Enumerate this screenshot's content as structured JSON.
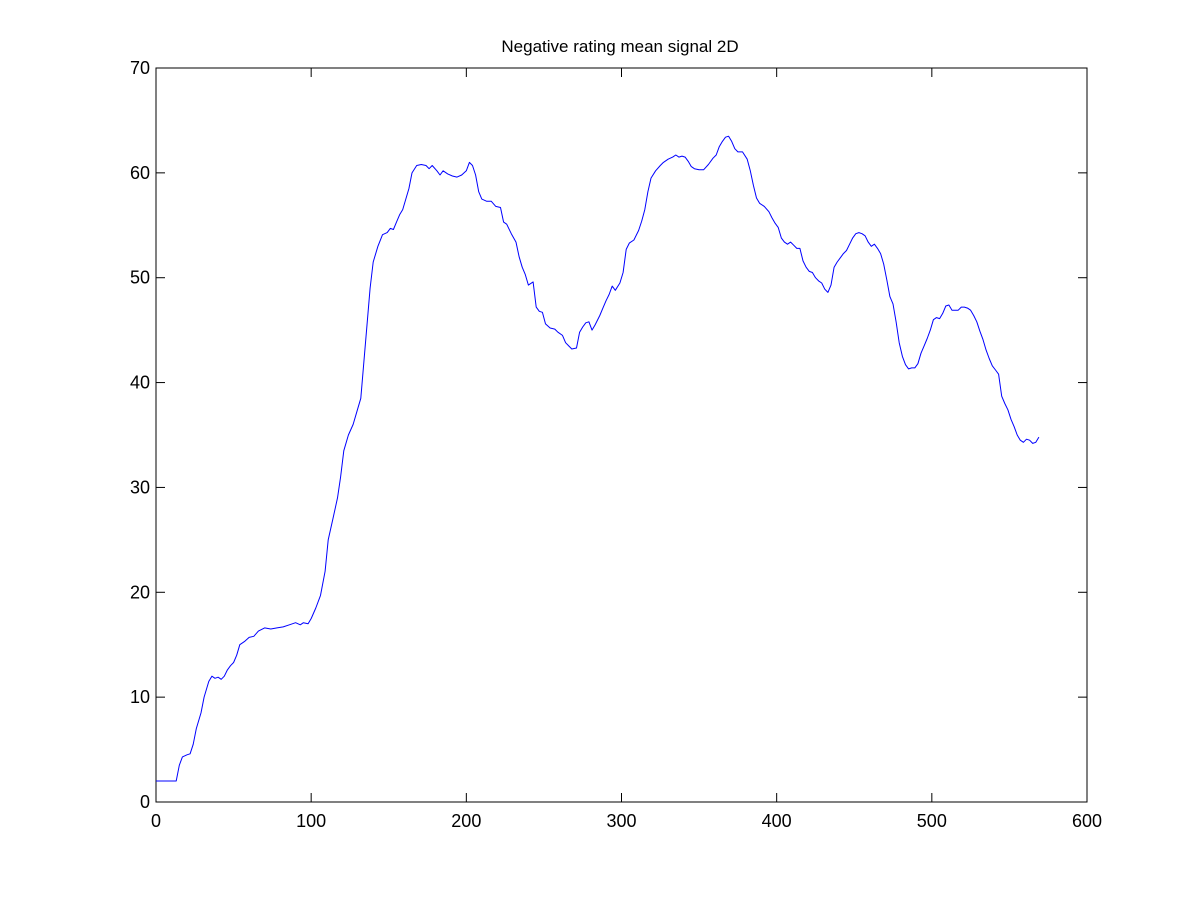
{
  "chart_data": {
    "type": "line",
    "title": "Negative rating mean signal 2D",
    "xlabel": "",
    "ylabel": "",
    "xlim": [
      0,
      600
    ],
    "ylim": [
      0,
      70
    ],
    "x_ticks": [
      0,
      100,
      200,
      300,
      400,
      500,
      600
    ],
    "y_ticks": [
      0,
      10,
      20,
      30,
      40,
      50,
      60,
      70
    ],
    "x_tick_labels": [
      "0",
      "100",
      "200",
      "300",
      "400",
      "500",
      "600"
    ],
    "y_tick_labels": [
      "0",
      "10",
      "20",
      "30",
      "40",
      "50",
      "60",
      "70"
    ],
    "grid": false,
    "legend": "none",
    "series": [
      {
        "color": "#0000ff",
        "points": [
          [
            0,
            2
          ],
          [
            13,
            2
          ],
          [
            15,
            3.5
          ],
          [
            17,
            4.3
          ],
          [
            20,
            4.5
          ],
          [
            22,
            4.6
          ],
          [
            24,
            5.5
          ],
          [
            26,
            7
          ],
          [
            29,
            8.5
          ],
          [
            31,
            10
          ],
          [
            34,
            11.5
          ],
          [
            36,
            12
          ],
          [
            38,
            11.8
          ],
          [
            40,
            11.9
          ],
          [
            42,
            11.7
          ],
          [
            44,
            12
          ],
          [
            46,
            12.6
          ],
          [
            48,
            13
          ],
          [
            50,
            13.3
          ],
          [
            52,
            14
          ],
          [
            54,
            15
          ],
          [
            57,
            15.3
          ],
          [
            60,
            15.7
          ],
          [
            63,
            15.8
          ],
          [
            66,
            16.3
          ],
          [
            70,
            16.6
          ],
          [
            74,
            16.5
          ],
          [
            78,
            16.6
          ],
          [
            82,
            16.7
          ],
          [
            86,
            16.9
          ],
          [
            90,
            17.1
          ],
          [
            93,
            16.9
          ],
          [
            95,
            17.1
          ],
          [
            98,
            17
          ],
          [
            100,
            17.5
          ],
          [
            103,
            18.5
          ],
          [
            106,
            19.7
          ],
          [
            109,
            22
          ],
          [
            111,
            25
          ],
          [
            114,
            27
          ],
          [
            117,
            29
          ],
          [
            119,
            31
          ],
          [
            121,
            33.5
          ],
          [
            124,
            35
          ],
          [
            127,
            36
          ],
          [
            130,
            37.5
          ],
          [
            132,
            38.5
          ],
          [
            134,
            42
          ],
          [
            136,
            45.5
          ],
          [
            138,
            49
          ],
          [
            140,
            51.5
          ],
          [
            143,
            53
          ],
          [
            146,
            54.1
          ],
          [
            149,
            54.3
          ],
          [
            151,
            54.7
          ],
          [
            153,
            54.6
          ],
          [
            155,
            55.3
          ],
          [
            157,
            56
          ],
          [
            159,
            56.5
          ],
          [
            161,
            57.5
          ],
          [
            163,
            58.5
          ],
          [
            165,
            60
          ],
          [
            168,
            60.7
          ],
          [
            171,
            60.8
          ],
          [
            174,
            60.7
          ],
          [
            176,
            60.4
          ],
          [
            178,
            60.7
          ],
          [
            181,
            60.2
          ],
          [
            183,
            59.8
          ],
          [
            185,
            60.2
          ],
          [
            188,
            59.9
          ],
          [
            191,
            59.7
          ],
          [
            194,
            59.6
          ],
          [
            197,
            59.8
          ],
          [
            200,
            60.2
          ],
          [
            202,
            61
          ],
          [
            204,
            60.7
          ],
          [
            206,
            59.8
          ],
          [
            208,
            58.2
          ],
          [
            210,
            57.5
          ],
          [
            213,
            57.3
          ],
          [
            216,
            57.3
          ],
          [
            219,
            56.8
          ],
          [
            222,
            56.7
          ],
          [
            224,
            55.3
          ],
          [
            226,
            55.1
          ],
          [
            229,
            54.2
          ],
          [
            232,
            53.4
          ],
          [
            234,
            52
          ],
          [
            236,
            51
          ],
          [
            238,
            50.3
          ],
          [
            240,
            49.3
          ],
          [
            243,
            49.6
          ],
          [
            245,
            47.2
          ],
          [
            247,
            46.8
          ],
          [
            249,
            46.7
          ],
          [
            251,
            45.6
          ],
          [
            254,
            45.2
          ],
          [
            257,
            45.1
          ],
          [
            259,
            44.8
          ],
          [
            262,
            44.5
          ],
          [
            264,
            43.8
          ],
          [
            266,
            43.5
          ],
          [
            268,
            43.2
          ],
          [
            271,
            43.3
          ],
          [
            273,
            44.8
          ],
          [
            275,
            45.3
          ],
          [
            277,
            45.7
          ],
          [
            279,
            45.8
          ],
          [
            281,
            45
          ],
          [
            283,
            45.5
          ],
          [
            286,
            46.4
          ],
          [
            288,
            47.1
          ],
          [
            290,
            47.8
          ],
          [
            292,
            48.4
          ],
          [
            294,
            49.2
          ],
          [
            296,
            48.8
          ],
          [
            299,
            49.5
          ],
          [
            301,
            50.5
          ],
          [
            303,
            52.7
          ],
          [
            305,
            53.3
          ],
          [
            308,
            53.6
          ],
          [
            311,
            54.5
          ],
          [
            313,
            55.4
          ],
          [
            315,
            56.5
          ],
          [
            317,
            58.2
          ],
          [
            319,
            59.5
          ],
          [
            322,
            60.2
          ],
          [
            325,
            60.7
          ],
          [
            327,
            61
          ],
          [
            330,
            61.3
          ],
          [
            333,
            61.5
          ],
          [
            335,
            61.7
          ],
          [
            337,
            61.5
          ],
          [
            339,
            61.6
          ],
          [
            341,
            61.5
          ],
          [
            343,
            61.1
          ],
          [
            345,
            60.6
          ],
          [
            347,
            60.4
          ],
          [
            350,
            60.3
          ],
          [
            353,
            60.3
          ],
          [
            356,
            60.8
          ],
          [
            359,
            61.4
          ],
          [
            361,
            61.7
          ],
          [
            363,
            62.5
          ],
          [
            365,
            63
          ],
          [
            367,
            63.4
          ],
          [
            369,
            63.5
          ],
          [
            371,
            63
          ],
          [
            373,
            62.3
          ],
          [
            375,
            62
          ],
          [
            378,
            62
          ],
          [
            381,
            61.3
          ],
          [
            383,
            60.2
          ],
          [
            385,
            58.8
          ],
          [
            387,
            57.6
          ],
          [
            389,
            57.1
          ],
          [
            392,
            56.8
          ],
          [
            395,
            56.3
          ],
          [
            397,
            55.7
          ],
          [
            399,
            55.2
          ],
          [
            401,
            54.8
          ],
          [
            403,
            53.8
          ],
          [
            405,
            53.4
          ],
          [
            407,
            53.2
          ],
          [
            409,
            53.4
          ],
          [
            411,
            53.1
          ],
          [
            413,
            52.8
          ],
          [
            415,
            52.8
          ],
          [
            417,
            51.6
          ],
          [
            419,
            51
          ],
          [
            421,
            50.6
          ],
          [
            423,
            50.5
          ],
          [
            425,
            50
          ],
          [
            427,
            49.7
          ],
          [
            429,
            49.5
          ],
          [
            431,
            48.9
          ],
          [
            433,
            48.6
          ],
          [
            435,
            49.3
          ],
          [
            437,
            51
          ],
          [
            439,
            51.5
          ],
          [
            441,
            51.9
          ],
          [
            443,
            52.3
          ],
          [
            445,
            52.6
          ],
          [
            447,
            53.2
          ],
          [
            449,
            53.8
          ],
          [
            451,
            54.2
          ],
          [
            453,
            54.3
          ],
          [
            455,
            54.2
          ],
          [
            457,
            54
          ],
          [
            459,
            53.4
          ],
          [
            461,
            53
          ],
          [
            463,
            53.2
          ],
          [
            465,
            52.8
          ],
          [
            467,
            52.3
          ],
          [
            469,
            51.3
          ],
          [
            471,
            49.8
          ],
          [
            473,
            48.2
          ],
          [
            475,
            47.5
          ],
          [
            477,
            45.8
          ],
          [
            479,
            43.8
          ],
          [
            481,
            42.5
          ],
          [
            483,
            41.7
          ],
          [
            485,
            41.3
          ],
          [
            487,
            41.4
          ],
          [
            489,
            41.4
          ],
          [
            491,
            41.8
          ],
          [
            493,
            42.8
          ],
          [
            495,
            43.5
          ],
          [
            497,
            44.2
          ],
          [
            499,
            45
          ],
          [
            501,
            46
          ],
          [
            503,
            46.2
          ],
          [
            505,
            46.1
          ],
          [
            507,
            46.6
          ],
          [
            509,
            47.3
          ],
          [
            511,
            47.4
          ],
          [
            513,
            46.9
          ],
          [
            515,
            46.9
          ],
          [
            517,
            46.9
          ],
          [
            519,
            47.2
          ],
          [
            521,
            47.2
          ],
          [
            523,
            47.1
          ],
          [
            525,
            46.9
          ],
          [
            527,
            46.4
          ],
          [
            529,
            45.8
          ],
          [
            531,
            44.9
          ],
          [
            533,
            44.1
          ],
          [
            535,
            43.1
          ],
          [
            537,
            42.3
          ],
          [
            539,
            41.6
          ],
          [
            541,
            41.2
          ],
          [
            543,
            40.8
          ],
          [
            545,
            38.7
          ],
          [
            547,
            38
          ],
          [
            549,
            37.4
          ],
          [
            551,
            36.5
          ],
          [
            553,
            35.8
          ],
          [
            555,
            35
          ],
          [
            557,
            34.5
          ],
          [
            559,
            34.3
          ],
          [
            561,
            34.6
          ],
          [
            563,
            34.5
          ],
          [
            565,
            34.2
          ],
          [
            567,
            34.3
          ],
          [
            569,
            34.8
          ]
        ]
      }
    ]
  }
}
